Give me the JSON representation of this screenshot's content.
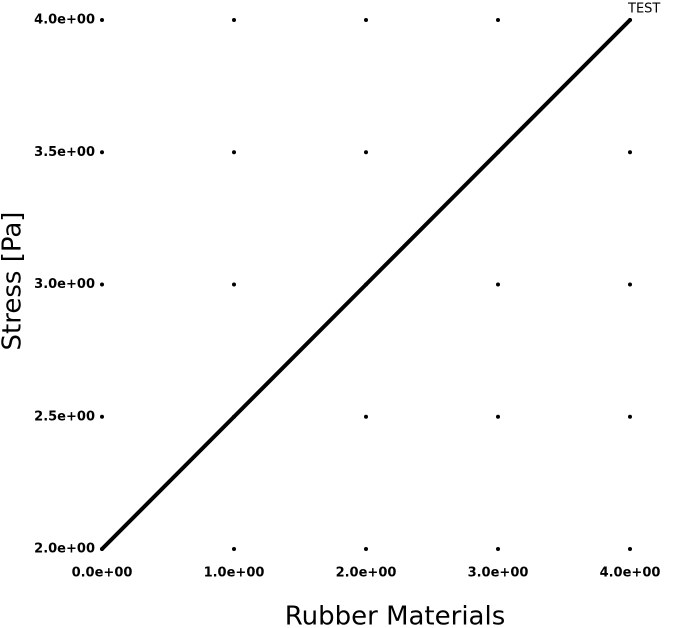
{
  "chart_data": {
    "type": "line",
    "xlabel": "Rubber Materials",
    "ylabel": "Stress [Pa]",
    "x": [
      0,
      1,
      2,
      3,
      4
    ],
    "series": [
      {
        "name": "TEST",
        "color": "#000000",
        "values": [
          2,
          2.5,
          3,
          3.5,
          4
        ]
      }
    ],
    "xlim": [
      0,
      4
    ],
    "ylim": [
      2,
      4
    ],
    "xticks": [
      {
        "value": 0,
        "label": "0.0e+00"
      },
      {
        "value": 1,
        "label": "1.0e+00"
      },
      {
        "value": 2,
        "label": "2.0e+00"
      },
      {
        "value": 3,
        "label": "3.0e+00"
      },
      {
        "value": 4,
        "label": "4.0e+00"
      }
    ],
    "yticks": [
      {
        "value": 2,
        "label": "2.0e+00"
      },
      {
        "value": 2.5,
        "label": "2.5e+00"
      },
      {
        "value": 3,
        "label": "3.0e+00"
      },
      {
        "value": 3.5,
        "label": "3.5e+00"
      },
      {
        "value": 4,
        "label": "4.0e+00"
      }
    ],
    "grid": true
  }
}
